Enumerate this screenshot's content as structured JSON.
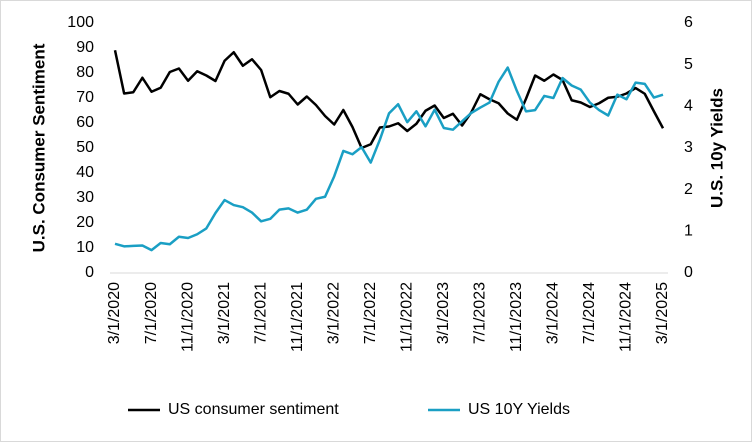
{
  "chart_data": {
    "type": "line",
    "y_label": "U.S. Consumer Sentiment",
    "y2_label": "U.S. 10y Yields",
    "categories": [
      "3/1/2020",
      null,
      null,
      null,
      "7/1/2020",
      null,
      null,
      null,
      "11/1/2020",
      null,
      null,
      null,
      "3/1/2021",
      null,
      null,
      null,
      "7/1/2021",
      null,
      null,
      null,
      "11/1/2021",
      null,
      null,
      null,
      "3/1/2022",
      null,
      null,
      null,
      "7/1/2022",
      null,
      null,
      null,
      "11/1/2022",
      null,
      null,
      null,
      "3/1/2023",
      null,
      null,
      null,
      "7/1/2023",
      null,
      null,
      null,
      "11/1/2023",
      null,
      null,
      null,
      "3/1/2024",
      null,
      null,
      null,
      "7/1/2024",
      null,
      null,
      null,
      "11/1/2024",
      null,
      null,
      null,
      "3/1/2025"
    ],
    "ylim": [
      0,
      100
    ],
    "yticks": [
      0,
      10,
      20,
      30,
      40,
      50,
      60,
      70,
      80,
      90,
      100
    ],
    "y2lim": [
      0,
      6
    ],
    "y2ticks": [
      0,
      1,
      2,
      3,
      4,
      5,
      6
    ],
    "legend": "bottom",
    "series": [
      {
        "name": "US consumer sentiment",
        "color": "#000000",
        "values": [
          89.1,
          71.8,
          72.3,
          78.1,
          72.5,
          74.1,
          80.4,
          81.8,
          76.9,
          80.7,
          79.0,
          76.8,
          84.9,
          88.3,
          82.9,
          85.5,
          81.2,
          70.3,
          72.8,
          71.7,
          67.4,
          70.6,
          67.2,
          62.8,
          59.4,
          65.2,
          58.4,
          50.0,
          51.5,
          58.2,
          58.6,
          59.9,
          56.8,
          59.7,
          64.9,
          67.0,
          62.0,
          63.7,
          59.0,
          64.2,
          71.5,
          69.5,
          67.9,
          63.8,
          61.3,
          69.7,
          79.0,
          76.9,
          79.4,
          77.2,
          69.1,
          68.2,
          66.4,
          67.9,
          70.1,
          70.5,
          71.8,
          74.0,
          71.7,
          64.7,
          57.9
        ]
      },
      {
        "name": "US 10Y Yields",
        "color": "#1a9fc4",
        "axis": "y2",
        "values": [
          0.7,
          0.64,
          0.65,
          0.66,
          0.55,
          0.72,
          0.69,
          0.87,
          0.84,
          0.93,
          1.07,
          1.44,
          1.75,
          1.63,
          1.58,
          1.45,
          1.24,
          1.3,
          1.52,
          1.55,
          1.45,
          1.52,
          1.78,
          1.83,
          2.32,
          2.93,
          2.85,
          3.02,
          2.65,
          3.2,
          3.83,
          4.05,
          3.62,
          3.88,
          3.52,
          3.92,
          3.48,
          3.44,
          3.64,
          3.84,
          3.97,
          4.09,
          4.59,
          4.93,
          4.37,
          3.88,
          3.91,
          4.25,
          4.2,
          4.68,
          4.5,
          4.4,
          4.09,
          3.91,
          3.78,
          4.28,
          4.17,
          4.57,
          4.54,
          4.21,
          4.28
        ]
      }
    ]
  }
}
